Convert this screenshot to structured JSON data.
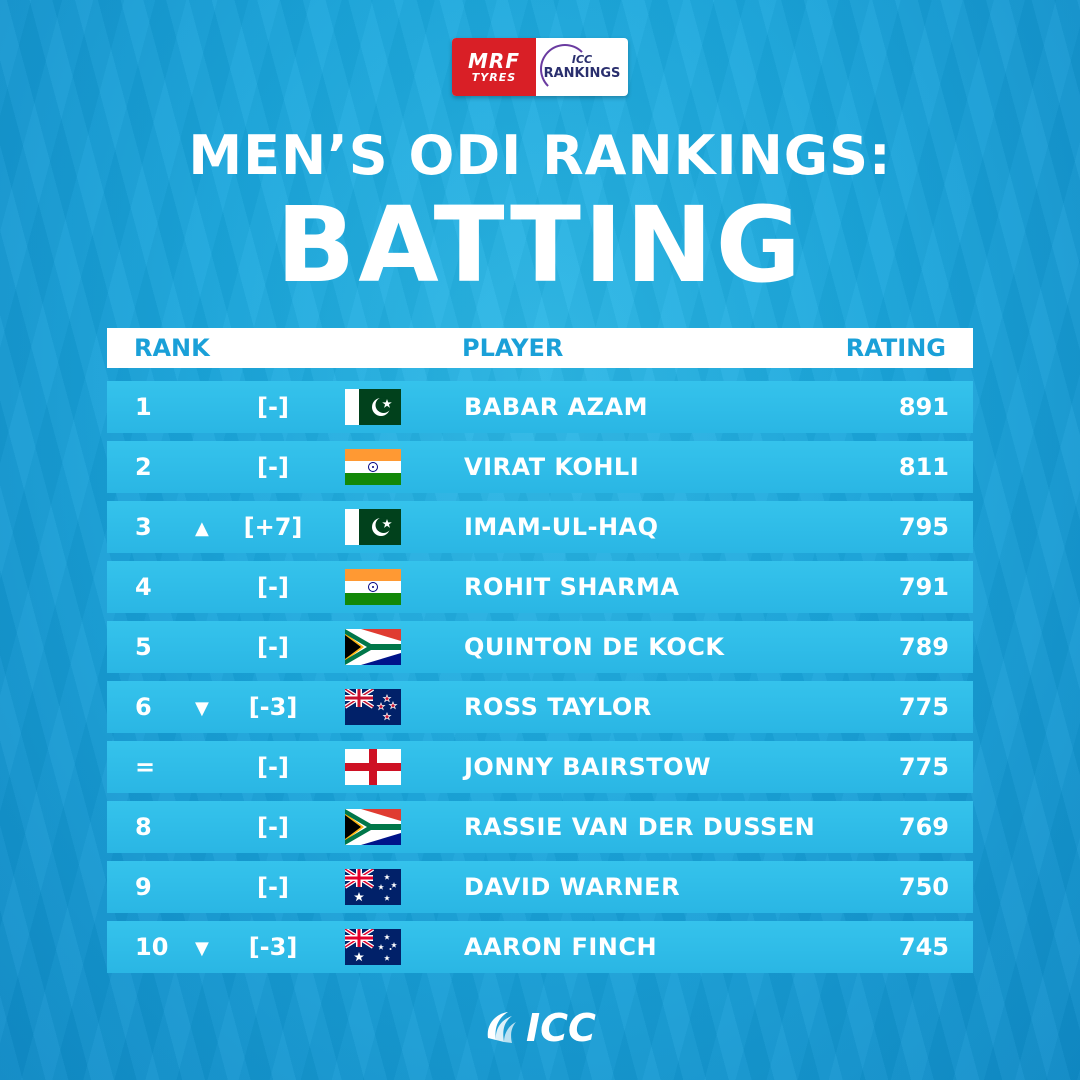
{
  "sponsor": {
    "mrf": "MRF",
    "tyres": "TYRES",
    "icc": "ICC",
    "rankings": "RANKINGS"
  },
  "title": {
    "line1": "MEN’S ODI RANKINGS:",
    "line2": "BATTING"
  },
  "table": {
    "headers": {
      "rank": "RANK",
      "player": "PLAYER",
      "rating": "RATING"
    },
    "rows": [
      {
        "rank": "1",
        "arrow": "",
        "move": "[-]",
        "flag": "pakistan",
        "player": "BABAR AZAM",
        "rating": "891"
      },
      {
        "rank": "2",
        "arrow": "",
        "move": "[-]",
        "flag": "india",
        "player": "VIRAT KOHLI",
        "rating": "811"
      },
      {
        "rank": "3",
        "arrow": "▲",
        "move": "[+7]",
        "flag": "pakistan",
        "player": "IMAM-UL-HAQ",
        "rating": "795"
      },
      {
        "rank": "4",
        "arrow": "",
        "move": "[-]",
        "flag": "india",
        "player": "ROHIT SHARMA",
        "rating": "791"
      },
      {
        "rank": "5",
        "arrow": "",
        "move": "[-]",
        "flag": "south-africa",
        "player": "QUINTON DE KOCK",
        "rating": "789"
      },
      {
        "rank": "6",
        "arrow": "▼",
        "move": "[-3]",
        "flag": "new-zealand",
        "player": "ROSS TAYLOR",
        "rating": "775"
      },
      {
        "rank": "=",
        "arrow": "",
        "move": "[-]",
        "flag": "england",
        "player": "JONNY BAIRSTOW",
        "rating": "775"
      },
      {
        "rank": "8",
        "arrow": "",
        "move": "[-]",
        "flag": "south-africa",
        "player": "RASSIE VAN DER DUSSEN",
        "rating": "769"
      },
      {
        "rank": "9",
        "arrow": "",
        "move": "[-]",
        "flag": "australia",
        "player": "DAVID WARNER",
        "rating": "750"
      },
      {
        "rank": "10",
        "arrow": "▼",
        "move": "[-3]",
        "flag": "australia",
        "player": "AARON FINCH",
        "rating": "745"
      }
    ]
  },
  "footer": {
    "logo_text": "ICC"
  },
  "colors": {
    "background": "#1aa6dc",
    "row": "#30bde8",
    "header_text": "#1aa0d8",
    "mrf_red": "#d91f26"
  }
}
